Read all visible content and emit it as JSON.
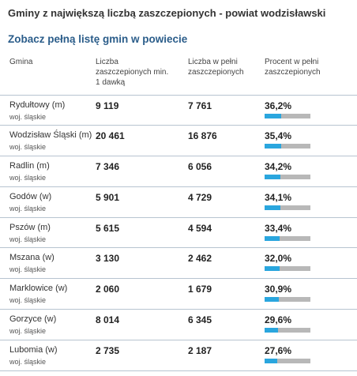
{
  "title": "Gminy z największą liczbą zaszczepionych - powiat wodzisławski",
  "link": "Zobacz pełną listę gmin w powiecie",
  "headers": {
    "gmina": "Gmina",
    "dose1_line1": "Liczba",
    "dose1_line2": "zaszczepionych min.",
    "dose1_line3": "1 dawką",
    "full_line1": "Liczba w pełni",
    "full_line2": "zaszczepionych",
    "pct_line1": "Procent w pełni",
    "pct_line2": "zaszczepionych"
  },
  "rows": [
    {
      "gmina": "Rydułtowy (m)",
      "woj": "woj. śląskie",
      "dose1": "9 119",
      "full": "7 761",
      "pct": "36,2%",
      "pct_value": 36.2
    },
    {
      "gmina": "Wodzisław Śląski (m)",
      "woj": "woj. śląskie",
      "dose1": "20 461",
      "full": "16 876",
      "pct": "35,4%",
      "pct_value": 35.4
    },
    {
      "gmina": "Radlin (m)",
      "woj": "woj. śląskie",
      "dose1": "7 346",
      "full": "6 056",
      "pct": "34,2%",
      "pct_value": 34.2
    },
    {
      "gmina": "Godów (w)",
      "woj": "woj. śląskie",
      "dose1": "5 901",
      "full": "4 729",
      "pct": "34,1%",
      "pct_value": 34.1
    },
    {
      "gmina": "Pszów (m)",
      "woj": "woj. śląskie",
      "dose1": "5 615",
      "full": "4 594",
      "pct": "33,4%",
      "pct_value": 33.4
    },
    {
      "gmina": "Mszana (w)",
      "woj": "woj. śląskie",
      "dose1": "3 130",
      "full": "2 462",
      "pct": "32,0%",
      "pct_value": 32.0
    },
    {
      "gmina": "Marklowice (w)",
      "woj": "woj. śląskie",
      "dose1": "2 060",
      "full": "1 679",
      "pct": "30,9%",
      "pct_value": 30.9
    },
    {
      "gmina": "Gorzyce (w)",
      "woj": "woj. śląskie",
      "dose1": "8 014",
      "full": "6 345",
      "pct": "29,6%",
      "pct_value": 29.6
    },
    {
      "gmina": "Lubomia (w)",
      "woj": "woj. śląskie",
      "dose1": "2 735",
      "full": "2 187",
      "pct": "27,6%",
      "pct_value": 27.6
    }
  ],
  "colors": {
    "bar_fill": "#2aa6de",
    "bar_track": "#b8b8b8",
    "link": "#2b5d8a",
    "row_border": "#b7c4d0"
  }
}
